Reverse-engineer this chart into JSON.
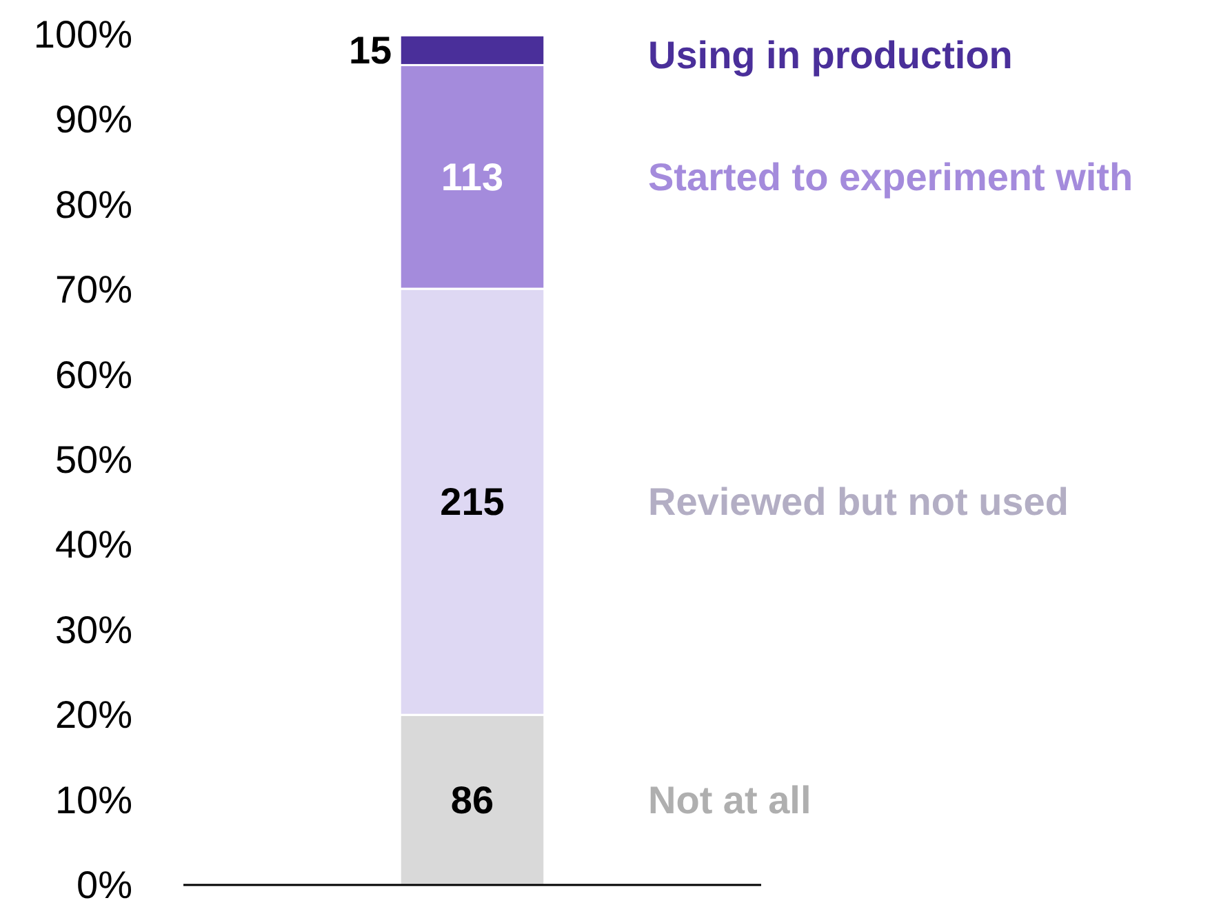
{
  "chart_data": {
    "type": "bar",
    "stacked": true,
    "categories": [
      null
    ],
    "ylim": [
      0,
      100
    ],
    "yticks": [
      {
        "value": 0,
        "label": "0%"
      },
      {
        "value": 10,
        "label": "10%"
      },
      {
        "value": 20,
        "label": "20%"
      },
      {
        "value": 30,
        "label": "30%"
      },
      {
        "value": 40,
        "label": "40%"
      },
      {
        "value": 50,
        "label": "50%"
      },
      {
        "value": 60,
        "label": "60%"
      },
      {
        "value": 70,
        "label": "70%"
      },
      {
        "value": 80,
        "label": "80%"
      },
      {
        "value": 90,
        "label": "90%"
      },
      {
        "value": 100,
        "label": "100%"
      }
    ],
    "series": [
      {
        "name": "Not at all",
        "color": "#d9d9d9",
        "values": [
          20.0
        ]
      },
      {
        "name": "Reviewed but not used",
        "color": "#ded8f3",
        "values": [
          50.1
        ]
      },
      {
        "name": "Started to experiment with",
        "color": "#a48bdc",
        "values": [
          26.3
        ]
      },
      {
        "name": "Using in production",
        "color": "#4a2f9a",
        "values": [
          3.5
        ]
      }
    ],
    "annotations": [
      "86",
      "215",
      "113",
      "15"
    ],
    "legend": "right",
    "grid": false
  }
}
